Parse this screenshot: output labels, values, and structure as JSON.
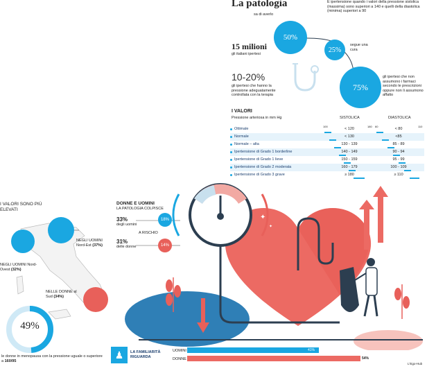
{
  "header": {
    "title": "La patologia",
    "subtitle_small": "sa di averlo",
    "intro": "È ipertensione quando i valori della pressione sistolica (massima) sono superiori a 140 e quelli della diastolica (minima) superiori a 90"
  },
  "stats": {
    "big_number": "15 milioni",
    "big_caption": "gli italiani ipertesi",
    "bubble1": "50%",
    "bubble2": "25%",
    "bubble2_caption": "segue una cura",
    "bubble3": "75%",
    "bubble3_caption": "gli ipertesi che non assumono i farmaci secondo le prescrizioni oppure non li assumono affatto",
    "range": "10-20%",
    "range_caption": "gli ipertesi che hanno la pressione adeguatamente controllata con la terapia"
  },
  "values_table": {
    "title": "I VALORI",
    "subtitle": "Pressione arteriosa in mm Hg",
    "col_sys": "SISTOLICA",
    "col_dia": "DIASTOLICA",
    "scale_sys": [
      "100",
      "180"
    ],
    "scale_dia": [
      "60",
      "110"
    ],
    "rows": [
      {
        "label": "Ottimale",
        "sys": "< 120",
        "dia": "< 80"
      },
      {
        "label": "Normale",
        "sys": "< 130",
        "dia": "<85"
      },
      {
        "label": "Normale – alta",
        "sys": "130 - 139",
        "dia": "85 - 89"
      },
      {
        "label": "Ipertensione di Grado 1 borderline",
        "sys": "140 - 149",
        "dia": "90 - 94"
      },
      {
        "label": "Ipertensione di Grado 1 lieve",
        "sys": "150 - 159",
        "dia": "95 - 99"
      },
      {
        "label": "Ipertensione di Grado 2 moderata",
        "sys": "160 - 179",
        "dia": "100 - 109"
      },
      {
        "label": "Ipertensione di Grado 3 grave",
        "sys": "≥ 180",
        "dia": "≥ 110"
      }
    ]
  },
  "map": {
    "title": "I VALORI SONO PIÙ ELEVATI",
    "nw_label": "NEGLI UOMINI Nord-Ovest",
    "nw_value": "(32%)",
    "ne_label": "NEGLI UOMINI Nord-Est",
    "ne_value": "(37%)",
    "south_label": "NELLE DONNE al Sud",
    "south_value": "(34%)"
  },
  "gender": {
    "title": "DONNE E UOMINI",
    "subtitle": "LA PATOLOGIA COLPISCE",
    "men_pct": "33%",
    "men_label": "degli uomini",
    "women_pct": "31%",
    "women_label": "delle donne",
    "risk_label": "A RISCHIO",
    "risk_men": "18%",
    "risk_women": "14%"
  },
  "menopause": {
    "value": "49%",
    "caption_a": "le donne in menopausa con la pressione uguale o superiore a ",
    "caption_b": "160/95"
  },
  "familiarity": {
    "title": "LA FAMILIARITÀ RIGUARDA",
    "men_label": "UOMINI",
    "men_value": "41%",
    "women_label": "DONNE",
    "women_value": "54%",
    "men_fraction": 0.41,
    "women_fraction": 0.54
  },
  "credit": "L'Ego-Hub",
  "colors": {
    "blue": "#1aa7e1",
    "red": "#e8605a",
    "pink": "#f2a9a3",
    "navy": "#1a3e6e",
    "dark": "#2c3e50"
  }
}
